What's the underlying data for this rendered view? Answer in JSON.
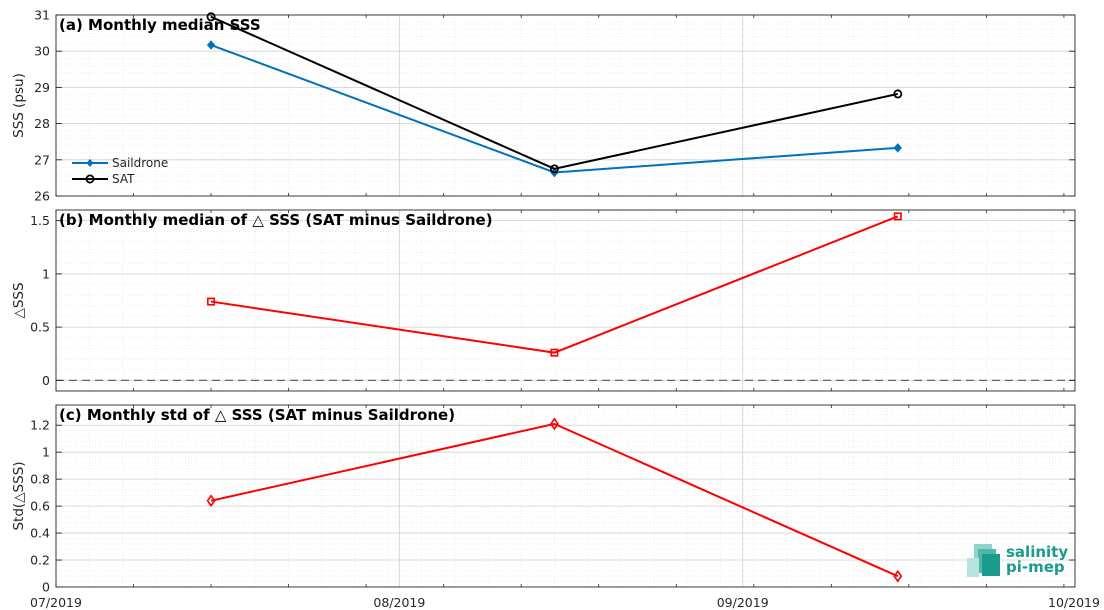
{
  "chart_data": [
    {
      "type": "line",
      "title": "(a) Monthly median SSS",
      "ylabel": "SSS (psu)",
      "ylim": [
        26,
        31
      ],
      "yticks": [
        26,
        27,
        28,
        29,
        30,
        31
      ],
      "xticks": [
        "07/2019",
        "08/2019",
        "09/2019",
        "10/2019"
      ],
      "x": [
        "2019-07-15",
        "2019-08-15",
        "2019-09-15"
      ],
      "series": [
        {
          "name": "Saildrone",
          "values": [
            30.17,
            26.65,
            27.33
          ],
          "color": "#0072BD",
          "marker": "diamond-filled"
        },
        {
          "name": "SAT",
          "values": [
            30.95,
            26.75,
            28.82
          ],
          "color": "#000000",
          "marker": "circle-open"
        }
      ],
      "legend": "bottom-left",
      "grid": true
    },
    {
      "type": "line",
      "title": "(b) Monthly median of △ SSS (SAT minus Saildrone)",
      "ylabel": "△SSS",
      "ylim": [
        -0.1,
        1.6
      ],
      "yticks": [
        0,
        0.5,
        1,
        1.5
      ],
      "ytick_labels": [
        "0",
        "0.5",
        "1",
        "1.5"
      ],
      "xticks": [
        "07/2019",
        "08/2019",
        "09/2019",
        "10/2019"
      ],
      "x": [
        "2019-07-15",
        "2019-08-15",
        "2019-09-15"
      ],
      "series": [
        {
          "values": [
            0.74,
            0.26,
            1.54
          ],
          "color": "#FF0000",
          "marker": "square-open"
        }
      ],
      "reference_line": 0,
      "grid": true
    },
    {
      "type": "line",
      "title": "(c) Monthly std of △ SSS (SAT minus Saildrone)",
      "ylabel": "Std(△SSS)",
      "ylim": [
        0,
        1.35
      ],
      "yticks": [
        0,
        0.2,
        0.4,
        0.6,
        0.8,
        1,
        1.2
      ],
      "ytick_labels": [
        "0",
        "0.2",
        "0.4",
        "0.6",
        "0.8",
        "1",
        "1.2"
      ],
      "xticks": [
        "07/2019",
        "08/2019",
        "09/2019",
        "10/2019"
      ],
      "x": [
        "2019-07-15",
        "2019-08-15",
        "2019-09-15"
      ],
      "series": [
        {
          "values": [
            0.64,
            1.21,
            0.08
          ],
          "color": "#FF0000",
          "marker": "diamond-open"
        }
      ],
      "grid": true
    }
  ],
  "logo": {
    "line1": "salinity",
    "line2": "pi-mep",
    "color": "#1a9c8c",
    "icon": "salinity-logo-icon"
  }
}
